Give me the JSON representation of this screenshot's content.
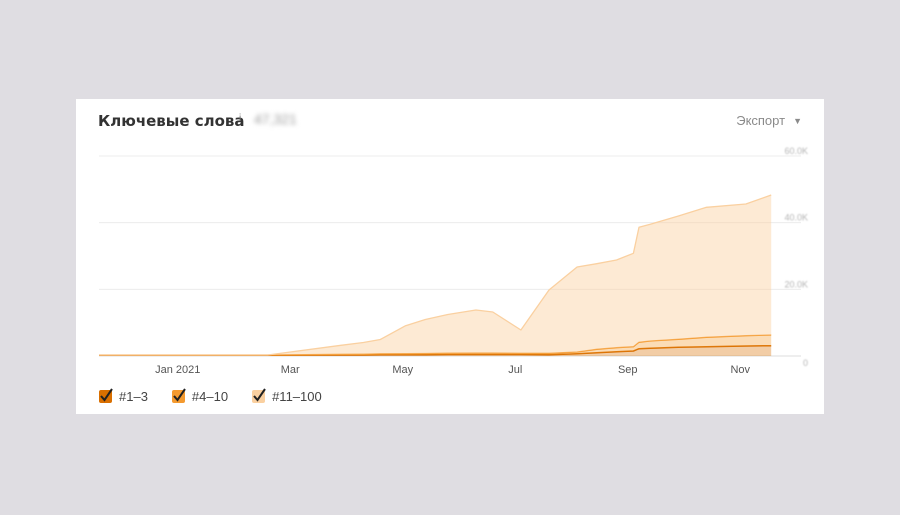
{
  "header": {
    "title": "Ключевые слова",
    "info_icon": "i",
    "total": "47,321",
    "export_label": "Экспорт",
    "export_caret": "▼"
  },
  "legend": [
    {
      "label": "#1–3",
      "color": "#d96f00"
    },
    {
      "label": "#4–10",
      "color": "#f49a2f"
    },
    {
      "label": "#11–100",
      "color": "#fad0a0"
    }
  ],
  "chart_data": {
    "type": "area",
    "stacked": true,
    "x_range": [
      0,
      12
    ],
    "x_ticks": [
      {
        "x": 1.4,
        "label": "Jan 2021"
      },
      {
        "x": 3.4,
        "label": "Mar"
      },
      {
        "x": 5.4,
        "label": "May"
      },
      {
        "x": 7.4,
        "label": "Jul"
      },
      {
        "x": 9.4,
        "label": "Sep"
      },
      {
        "x": 11.4,
        "label": "Nov"
      }
    ],
    "ylim": [
      0,
      60000
    ],
    "y_ticks": [
      {
        "value": 0,
        "label": "0"
      },
      {
        "value": 20000,
        "label": "20.0K"
      },
      {
        "value": 40000,
        "label": "40.0K"
      },
      {
        "value": 60000,
        "label": "60.0K"
      }
    ],
    "grid": true,
    "x": [
      0,
      3.0,
      4.3,
      4.7,
      5.0,
      5.45,
      5.8,
      6.2,
      6.7,
      7.0,
      7.5,
      8.0,
      8.5,
      8.85,
      9.2,
      9.5,
      9.6,
      9.8,
      10.3,
      10.8,
      11.5,
      11.95
    ],
    "series": [
      {
        "name": "#1–3",
        "values": [
          200,
          200,
          300,
          300,
          350,
          400,
          400,
          450,
          450,
          450,
          450,
          400,
          700,
          1000,
          1300,
          1500,
          2200,
          2300,
          2600,
          2800,
          3000,
          3100
        ]
      },
      {
        "name": "#4–10",
        "values": [
          100,
          100,
          200,
          250,
          300,
          300,
          350,
          400,
          450,
          450,
          350,
          400,
          500,
          1000,
          1200,
          1300,
          1900,
          2200,
          2400,
          2800,
          3100,
          3200
        ]
      },
      {
        "name": "#11–100",
        "values": [
          0,
          0,
          2700,
          3500,
          4300,
          8400,
          10200,
          11600,
          12900,
          12300,
          7000,
          19000,
          25500,
          25700,
          26300,
          28000,
          34500,
          35000,
          37000,
          39000,
          39500,
          42000
        ]
      }
    ]
  }
}
